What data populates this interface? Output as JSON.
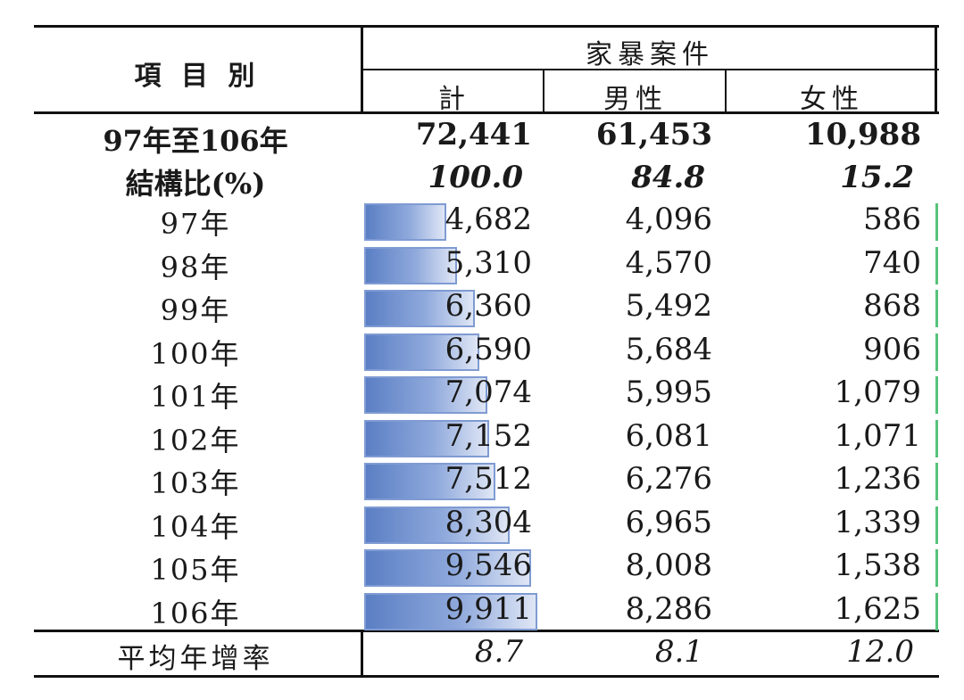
{
  "table": {
    "header": {
      "item_label": "項 目 別",
      "group_label": "家暴案件",
      "columns": [
        "計",
        "男性",
        "女性"
      ]
    },
    "total_row": {
      "label": "97年至106年",
      "values": [
        "72,441",
        "61,453",
        "10,988"
      ]
    },
    "ratio_row": {
      "label": "結構比(%)",
      "values": [
        "100.0",
        "84.8",
        "15.2"
      ]
    },
    "years": [
      {
        "label": "97年",
        "total": "4,682",
        "male": "4,096",
        "female": "586",
        "total_value": 4682
      },
      {
        "label": "98年",
        "total": "5,310",
        "male": "4,570",
        "female": "740",
        "total_value": 5310
      },
      {
        "label": "99年",
        "total": "6,360",
        "male": "5,492",
        "female": "868",
        "total_value": 6360
      },
      {
        "label": "100年",
        "total": "6,590",
        "male": "5,684",
        "female": "906",
        "total_value": 6590
      },
      {
        "label": "101年",
        "total": "7,074",
        "male": "5,995",
        "female": "1,079",
        "total_value": 7074
      },
      {
        "label": "102年",
        "total": "7,152",
        "male": "6,081",
        "female": "1,071",
        "total_value": 7152
      },
      {
        "label": "103年",
        "total": "7,512",
        "male": "6,276",
        "female": "1,236",
        "total_value": 7512
      },
      {
        "label": "104年",
        "total": "8,304",
        "male": "6,965",
        "female": "1,339",
        "total_value": 8304
      },
      {
        "label": "105年",
        "total": "9,546",
        "male": "8,008",
        "female": "1,538",
        "total_value": 9546
      },
      {
        "label": "106年",
        "total": "9,911",
        "male": "8,286",
        "female": "1,625",
        "total_value": 9911
      }
    ],
    "growth_row": {
      "label": "平均年增率",
      "values": [
        "8.7",
        "8.1",
        "12.0"
      ]
    }
  },
  "colors": {
    "databar": "#5b7fc4",
    "databar_border": "#7f9bd3",
    "edge_mark": "#57c27a"
  }
}
